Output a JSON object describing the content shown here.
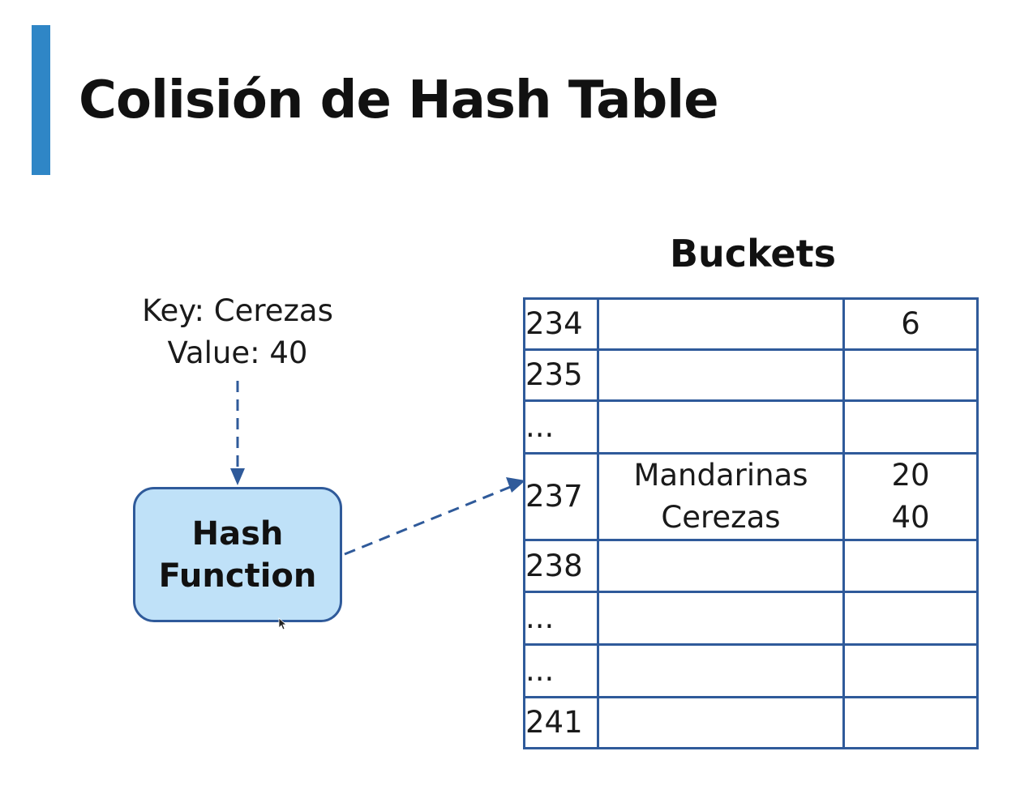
{
  "title": "Colisión de Hash Table",
  "colors": {
    "accent": "#2f86c6",
    "border": "#2f5a9a",
    "hash_fill": "#bfe1f8",
    "arrow": "#2f5a9a"
  },
  "input": {
    "key_line": "Key: Cerezas",
    "value_line": "Value: 40"
  },
  "hash_function": {
    "line1": "Hash",
    "line2": "Function"
  },
  "buckets": {
    "title": "Buckets",
    "rows": [
      {
        "index": "234",
        "keys": [],
        "values": [
          "6"
        ]
      },
      {
        "index": "235",
        "keys": [],
        "values": []
      },
      {
        "index": "...",
        "keys": [],
        "values": []
      },
      {
        "index": "237",
        "keys": [
          "Mandarinas",
          "Cerezas"
        ],
        "values": [
          "20",
          "40"
        ]
      },
      {
        "index": "238",
        "keys": [],
        "values": []
      },
      {
        "index": "...",
        "keys": [],
        "values": []
      },
      {
        "index": "...",
        "keys": [],
        "values": []
      },
      {
        "index": "241",
        "keys": [],
        "values": []
      }
    ]
  }
}
